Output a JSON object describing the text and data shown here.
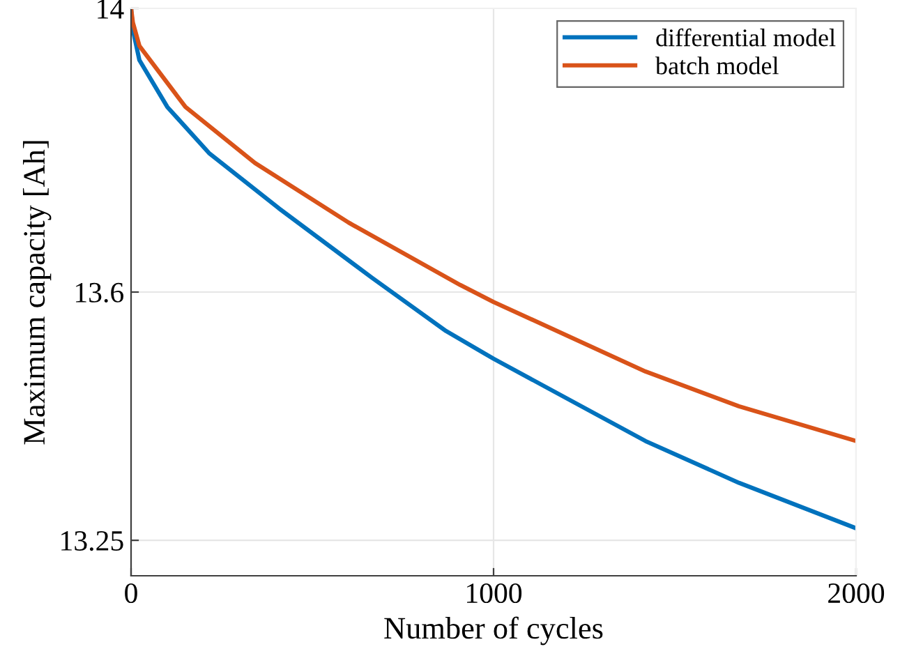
{
  "chart_data": {
    "type": "line",
    "xlabel": "Number of cycles",
    "ylabel": "Maximum capacity [Ah]",
    "xlim": [
      0,
      2000
    ],
    "xticks": [
      0,
      1000,
      2000
    ],
    "ylim": [
      13.2,
      14
    ],
    "yticks": [
      13.25,
      13.6,
      14
    ],
    "grid": true,
    "legend": "top right",
    "line_style": "solid",
    "marker": "none",
    "series": [
      {
        "name": "differential model",
        "color": "#0072bd",
        "x": [
          0,
          5,
          23,
          100,
          215,
          408,
          665,
          869,
          1000,
          1419,
          1677,
          2000
        ],
        "values": [
          14,
          13.97,
          13.927,
          13.861,
          13.796,
          13.718,
          13.62,
          13.545,
          13.506,
          13.39,
          13.331,
          13.267
        ]
      },
      {
        "name": "batch model",
        "color": "#d95319",
        "x": [
          0,
          5,
          23,
          150,
          342,
          600,
          908,
          1000,
          1419,
          1677,
          2000
        ],
        "values": [
          14,
          13.98,
          13.947,
          13.861,
          13.782,
          13.698,
          13.61,
          13.586,
          13.488,
          13.439,
          13.39
        ]
      }
    ]
  }
}
